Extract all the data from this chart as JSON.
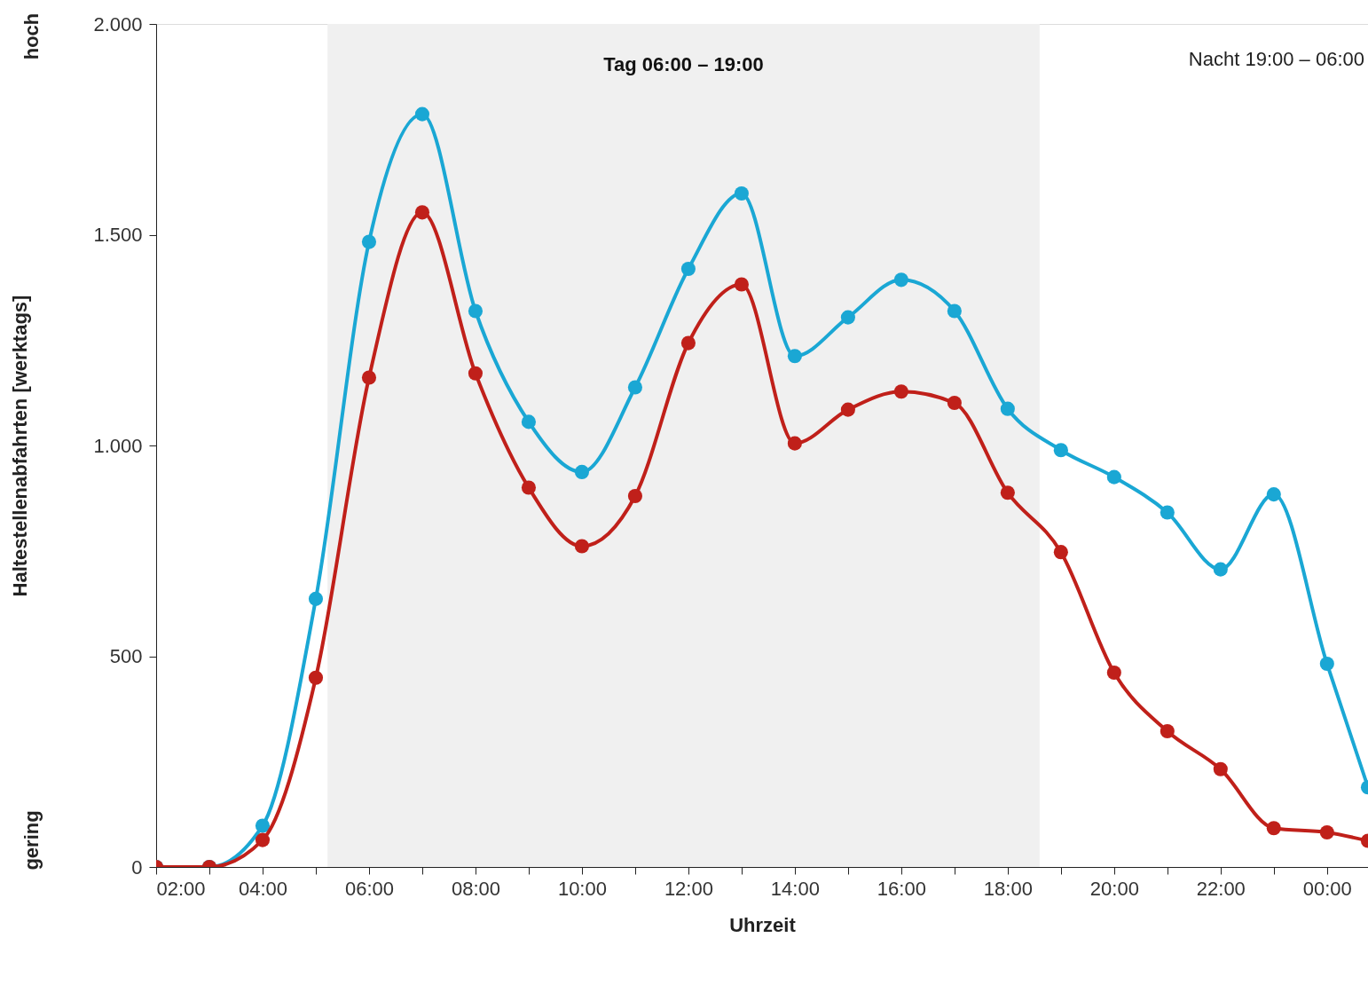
{
  "chart_data": {
    "type": "line",
    "xlabel": "Uhrzeit",
    "ylabel": "Haltestellenabfahrten [werktags]",
    "x": [
      2,
      3,
      4,
      5,
      6,
      7,
      8,
      9,
      10,
      11,
      12,
      13,
      14,
      15,
      16,
      17,
      18,
      19,
      20,
      21,
      22,
      23,
      24,
      24.77
    ],
    "series": [
      {
        "color": "#1aa7d4",
        "values": [
          0,
          0,
          98,
          636,
          1483,
          1786,
          1319,
          1056,
          937,
          1138,
          1419,
          1598,
          1212,
          1304,
          1393,
          1319,
          1087,
          989,
          925,
          841,
          706,
          884,
          482,
          189
        ]
      },
      {
        "color": "#c0201a",
        "values": [
          0,
          0,
          64,
          449,
          1161,
          1553,
          1171,
          900,
          761,
          880,
          1243,
          1382,
          1005,
          1085,
          1128,
          1101,
          888,
          747,
          461,
          322,
          232,
          92,
          82,
          62
        ]
      }
    ],
    "xlim": [
      2,
      24.77
    ],
    "ylim": [
      0,
      2000
    ],
    "xticks": [
      {
        "value": 2,
        "label": "02:00"
      },
      {
        "value": 3,
        "label": null
      },
      {
        "value": 4,
        "label": "04:00"
      },
      {
        "value": 5,
        "label": null
      },
      {
        "value": 6,
        "label": "06:00"
      },
      {
        "value": 7,
        "label": null
      },
      {
        "value": 8,
        "label": "08:00"
      },
      {
        "value": 9,
        "label": null
      },
      {
        "value": 10,
        "label": "10:00"
      },
      {
        "value": 11,
        "label": null
      },
      {
        "value": 12,
        "label": "12:00"
      },
      {
        "value": 13,
        "label": null
      },
      {
        "value": 14,
        "label": "14:00"
      },
      {
        "value": 15,
        "label": null
      },
      {
        "value": 16,
        "label": "16:00"
      },
      {
        "value": 17,
        "label": null
      },
      {
        "value": 18,
        "label": "18:00"
      },
      {
        "value": 19,
        "label": null
      },
      {
        "value": 20,
        "label": "20:00"
      },
      {
        "value": 21,
        "label": null
      },
      {
        "value": 22,
        "label": "22:00"
      },
      {
        "value": 23,
        "label": null
      },
      {
        "value": 24,
        "label": "00:00"
      }
    ],
    "yticks": [
      0,
      500,
      {
        "value": 1000,
        "label": "1.000"
      },
      {
        "value": 1500,
        "label": "1.500"
      },
      {
        "value": 2000,
        "label": "2.000"
      }
    ],
    "bands": [
      {
        "axis": "x",
        "from": 5.22,
        "to": 18.6,
        "label": "Tag 06:00 – 19:00",
        "color": "#f0f0f0"
      }
    ],
    "annotations": [
      "Nacht 19:00 – 06:00",
      "hoch",
      "gering"
    ],
    "marker": "circle",
    "line_style": "solid",
    "grid": false
  }
}
